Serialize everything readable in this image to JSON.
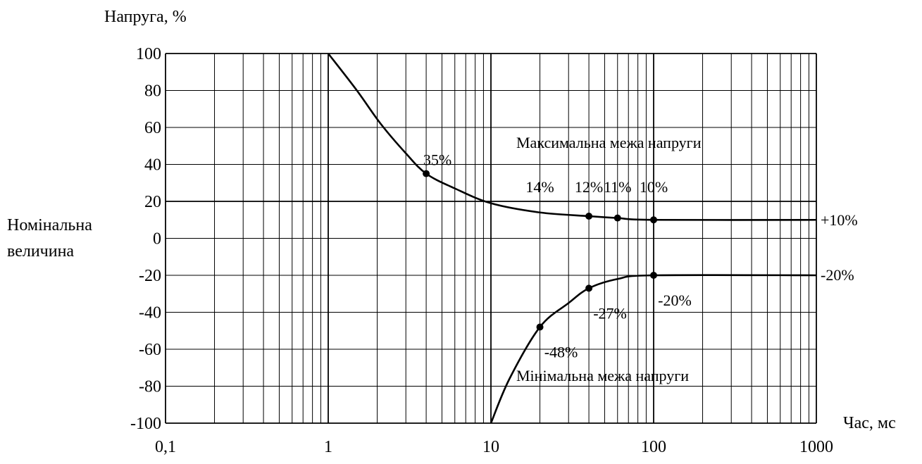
{
  "chart_data": {
    "type": "line",
    "title": "",
    "ylabel": "Напруга, %",
    "xlabel": "Час, мс",
    "x_scale": "log",
    "xlim": [
      0.1,
      1000
    ],
    "ylim": [
      -100,
      100
    ],
    "grid": true,
    "nominal_label_line1": "Номінальна",
    "nominal_label_line2": "величина",
    "x_ticks": [
      {
        "value": 0.1,
        "label": "0,1"
      },
      {
        "value": 1,
        "label": "1"
      },
      {
        "value": 10,
        "label": "10"
      },
      {
        "value": 100,
        "label": "100"
      },
      {
        "value": 1000,
        "label": "1000"
      }
    ],
    "y_ticks": [
      {
        "value": 100,
        "label": "100"
      },
      {
        "value": 80,
        "label": "80"
      },
      {
        "value": 60,
        "label": "60"
      },
      {
        "value": 40,
        "label": "40"
      },
      {
        "value": 20,
        "label": "20"
      },
      {
        "value": 0,
        "label": "0"
      },
      {
        "value": -20,
        "label": "-20"
      },
      {
        "value": -40,
        "label": "-40"
      },
      {
        "value": -60,
        "label": "-60"
      },
      {
        "value": -80,
        "label": "-80"
      },
      {
        "value": -100,
        "label": "-100"
      }
    ],
    "series": [
      {
        "name": "Максимальна межа напруги",
        "points": [
          {
            "x": 1,
            "y": 100
          },
          {
            "x": 1.5,
            "y": 80
          },
          {
            "x": 2.1,
            "y": 62
          },
          {
            "x": 3,
            "y": 46
          },
          {
            "x": 4,
            "y": 35,
            "marker": true,
            "label": "35%"
          },
          {
            "x": 6,
            "y": 27
          },
          {
            "x": 10,
            "y": 19
          },
          {
            "x": 20,
            "y": 14,
            "marker": false,
            "label": "14%"
          },
          {
            "x": 40,
            "y": 12,
            "marker": true,
            "label": "12%"
          },
          {
            "x": 60,
            "y": 11,
            "marker": true,
            "label": "11%"
          },
          {
            "x": 100,
            "y": 10,
            "marker": true,
            "label": "10%"
          },
          {
            "x": 1000,
            "y": 10
          }
        ],
        "end_label": "+10%"
      },
      {
        "name": "Мінімальна межа напруги",
        "points": [
          {
            "x": 10,
            "y": -100
          },
          {
            "x": 13,
            "y": -76
          },
          {
            "x": 20,
            "y": -48,
            "marker": true,
            "label": "-48%"
          },
          {
            "x": 30,
            "y": -35
          },
          {
            "x": 40,
            "y": -27,
            "marker": true,
            "label": "-27%"
          },
          {
            "x": 60,
            "y": -22
          },
          {
            "x": 100,
            "y": -20,
            "marker": true,
            "label": "-20%"
          },
          {
            "x": 1000,
            "y": -20
          }
        ],
        "end_label": "-20%"
      }
    ]
  }
}
